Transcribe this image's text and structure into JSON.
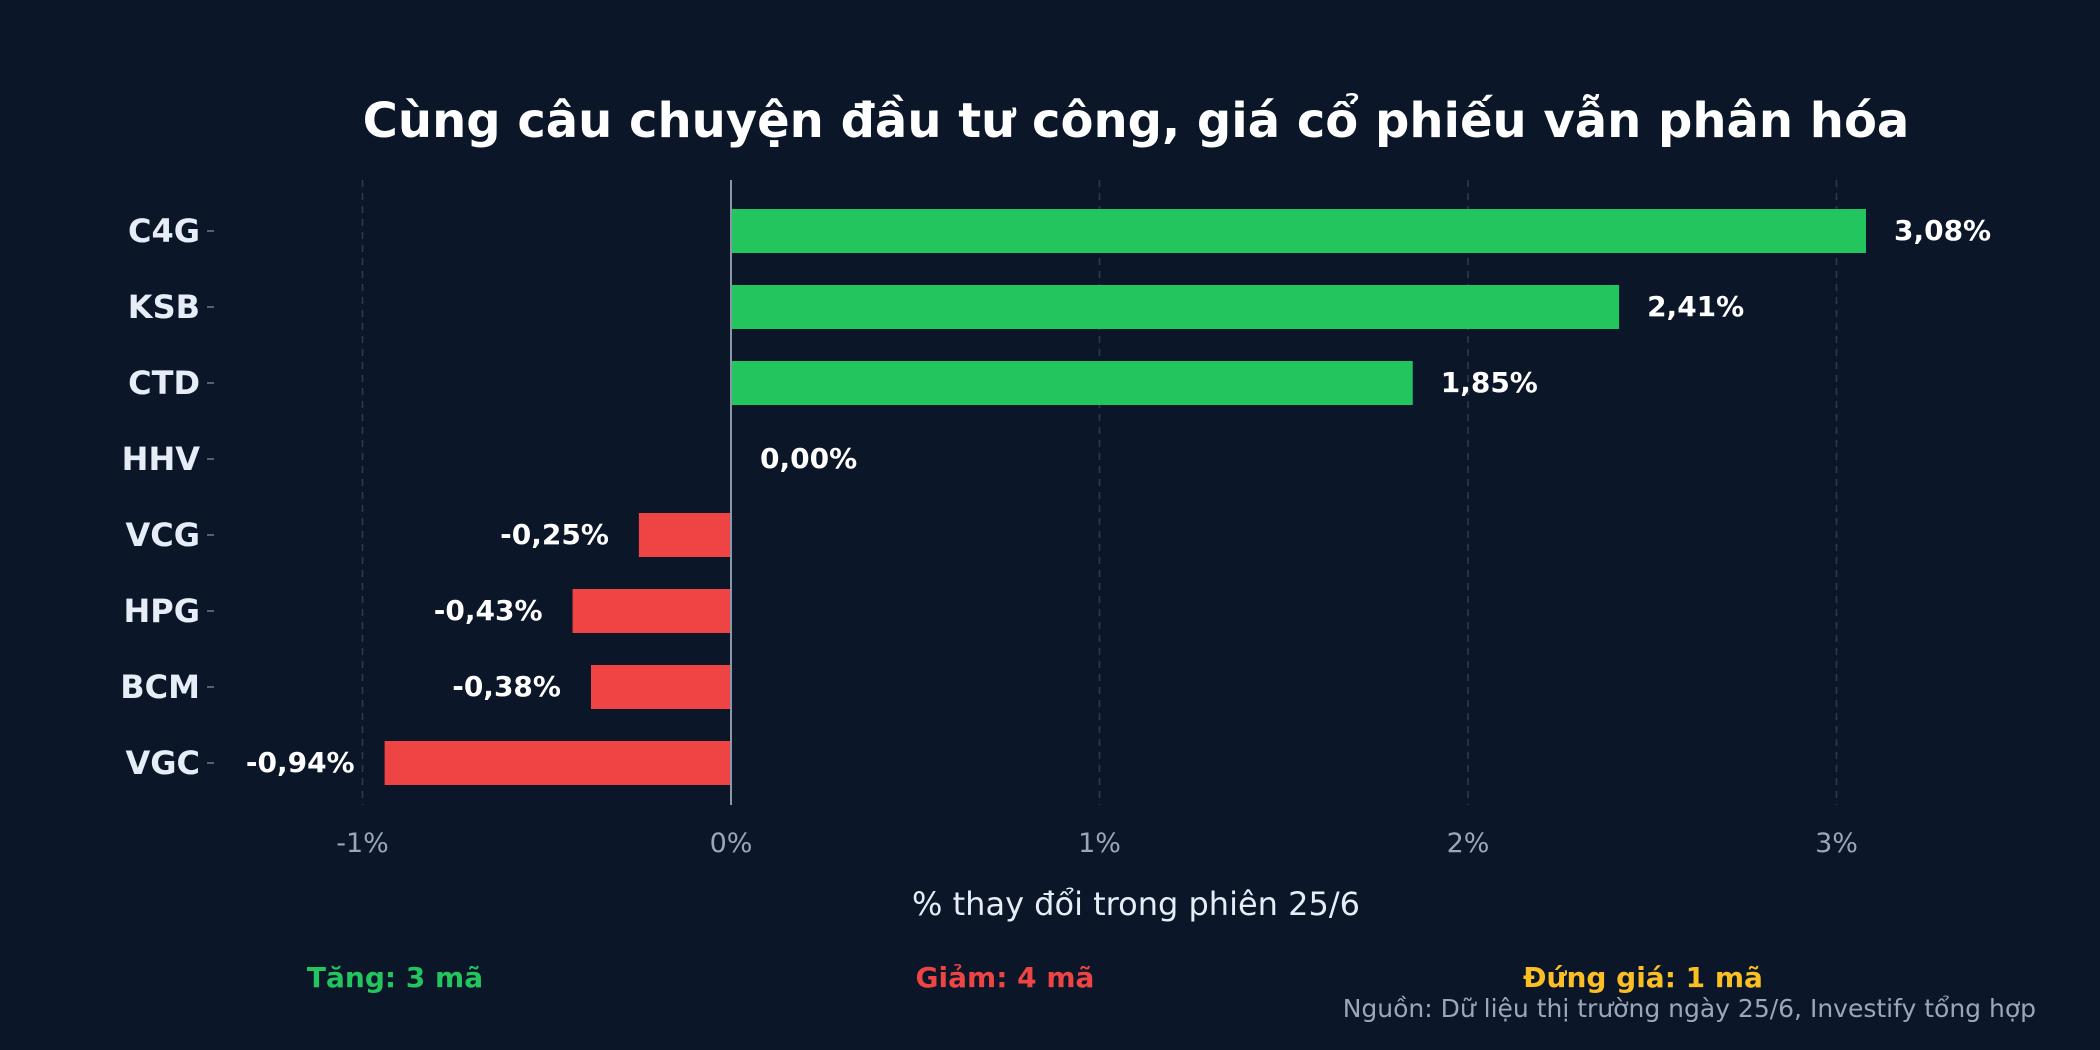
{
  "chart_data": {
    "type": "bar",
    "orientation": "horizontal",
    "title": "Cùng câu chuyện đầu tư công, giá cổ phiếu vẫn phân hóa",
    "xlabel": "% thay đổi trong phiên 25/6",
    "ylabel": "",
    "categories": [
      "C4G",
      "KSB",
      "CTD",
      "HHV",
      "VCG",
      "HPG",
      "BCM",
      "VGC"
    ],
    "values": [
      3.08,
      2.41,
      1.85,
      0.0,
      -0.25,
      -0.43,
      -0.38,
      -0.94
    ],
    "value_labels": [
      "3,08%",
      "2,41%",
      "1,85%",
      "0,00%",
      "-0,25%",
      "-0,43%",
      "-0,38%",
      "-0,94%"
    ],
    "xlim": [
      -1.4,
      3.5
    ],
    "xticks": [
      -1,
      0,
      1,
      2,
      3
    ],
    "xtick_labels": [
      "-1%",
      "0%",
      "1%",
      "2%",
      "3%"
    ],
    "grid": "vertical dashed",
    "colors": {
      "up": "#22c55e",
      "down": "#ef4444",
      "flat": "#fbbf24",
      "background": "#0b1729"
    }
  },
  "summary": {
    "up": "Tăng: 3 mã",
    "down": "Giảm: 4 mã",
    "flat": "Đứng giá: 1 mã"
  },
  "source": "Nguồn: Dữ liệu thị trường ngày 25/6, Investify tổng hợp"
}
